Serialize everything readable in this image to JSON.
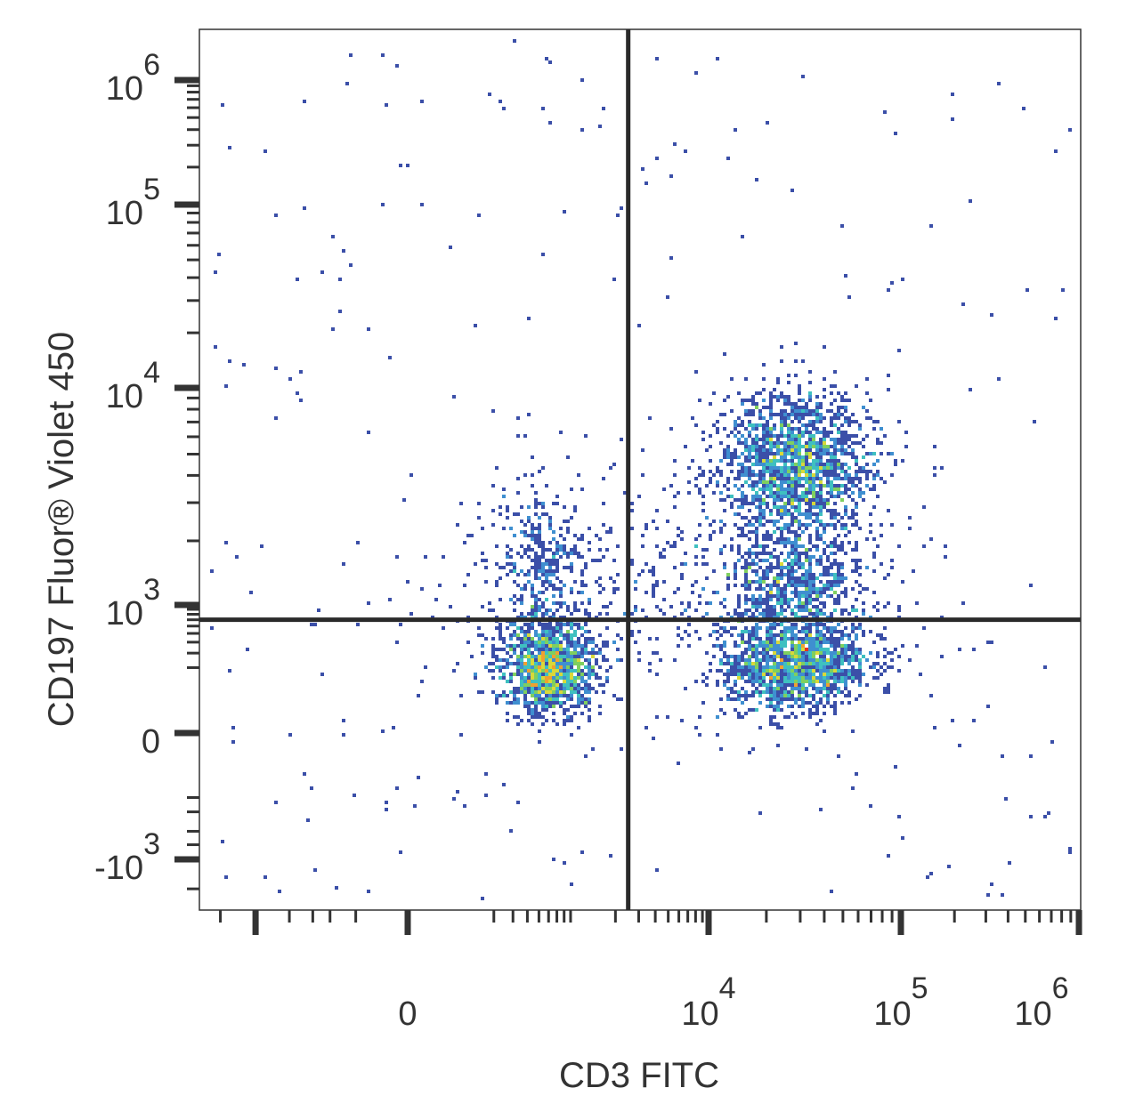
{
  "chart_data": {
    "type": "scatter",
    "subtype": "flow-cytometry-density-plot",
    "xlabel": "CD3 FITC",
    "ylabel": "CD197 Fluor® Violet 450",
    "x_scale": "biexponential",
    "y_scale": "biexponential",
    "x_ticks": [
      {
        "value": 0,
        "base": "0",
        "exp": ""
      },
      {
        "value": 10000,
        "base": "10",
        "exp": "4"
      },
      {
        "value": 100000,
        "base": "10",
        "exp": "5"
      },
      {
        "value": 1000000,
        "base": "10",
        "exp": "6"
      }
    ],
    "y_ticks": [
      {
        "value": -1000,
        "base": "-10",
        "exp": "3"
      },
      {
        "value": 0,
        "base": "0",
        "exp": ""
      },
      {
        "value": 1000,
        "base": "10",
        "exp": "3"
      },
      {
        "value": 10000,
        "base": "10",
        "exp": "4"
      },
      {
        "value": 100000,
        "base": "10",
        "exp": "5"
      },
      {
        "value": 1000000,
        "base": "10",
        "exp": "6"
      }
    ],
    "xlim": [
      -3000,
      1500000
    ],
    "ylim": [
      -2000,
      1500000
    ],
    "quadrant_gates": {
      "x": 2500,
      "y": 700
    },
    "density_colors": [
      "#3b4fa8",
      "#3f8fd0",
      "#3fc0c0",
      "#7fcf5f",
      "#d8d83a",
      "#f0a030",
      "#e83020"
    ],
    "populations": [
      {
        "name": "",
        "x_center": 600,
        "y_center": 200,
        "count": 1300,
        "peak": 5
      },
      {
        "name": "",
        "x_center": 500,
        "y_center": 1500,
        "count": 350,
        "peak": 2
      },
      {
        "name": "",
        "x_center": 28000,
        "y_center": 200,
        "count": 1300,
        "peak": 6
      },
      {
        "name": "",
        "x_center": 28000,
        "y_center": 1200,
        "count": 900,
        "peak": 4
      },
      {
        "name": "",
        "x_center": 28000,
        "y_center": 4500,
        "count": 1700,
        "peak": 6
      },
      {
        "name": "",
        "x_center": 5000,
        "y_center": 1200,
        "count": 450,
        "peak": 1
      }
    ]
  }
}
